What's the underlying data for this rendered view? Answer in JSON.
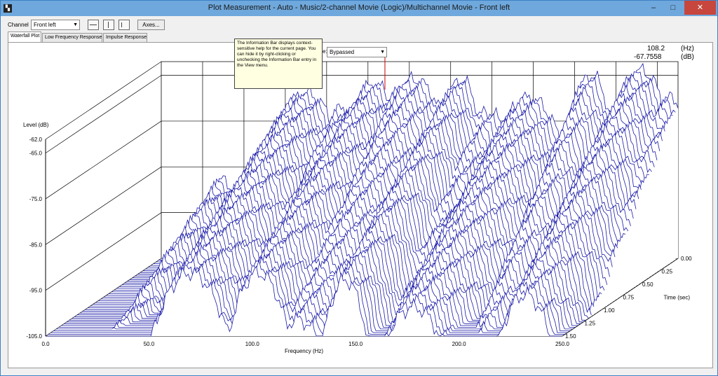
{
  "window": {
    "title": "Plot Measurement - Auto - Music/2-channel Movie (Logic)/Multichannel Movie - Front left",
    "minimize": "–",
    "maximize": "□",
    "close": "✕"
  },
  "toolbar": {
    "channel_label": "Channel",
    "channel_value": "Front left",
    "axes_label": "Axes..."
  },
  "tabs": [
    "Waterfall Plot",
    "Low Frequency Response",
    "Impulse Response"
  ],
  "tooltip": "The Information Bar displays context-sensitive help for the current page. You can hide it by right-clicking or unchecking the Information Bar entry in the View menu.",
  "bypass": {
    "prefix": "e:",
    "value": "Bypassed"
  },
  "readout": {
    "freq_value": "108.2",
    "freq_unit": "(Hz)",
    "level_value": "-67.7558",
    "level_unit": "(dB)"
  },
  "chart_data": {
    "type": "waterfall",
    "xlabel": "Frequency (Hz)",
    "ylabel": "Level (dB)",
    "zlabel": "Time (sec)",
    "x_ticks": [
      "0.0",
      "50.0",
      "100.0",
      "150.0",
      "200.0",
      "250.0"
    ],
    "y_ticks": [
      "-62.0",
      "-65.0",
      "-75.0",
      "-85.0",
      "-95.0",
      "-105.0"
    ],
    "z_ticks": [
      "0.00",
      "0.25",
      "0.50",
      "0.75",
      "1.00",
      "1.25",
      "1.50"
    ],
    "xlim": [
      0,
      250
    ],
    "ylim": [
      -105,
      -62
    ],
    "zlim": [
      0,
      1.5
    ],
    "cursor_frequency": 108.2,
    "line_color": "#1a1aa8",
    "cursor_color": "#cc0000",
    "peaks_hz": [
      [
        30,
        -88
      ],
      [
        50,
        -90
      ],
      [
        70,
        -69
      ],
      [
        88,
        -72
      ],
      [
        103,
        -67
      ],
      [
        122,
        -66
      ],
      [
        145,
        -66
      ],
      [
        158,
        -73
      ],
      [
        178,
        -70
      ],
      [
        208,
        -65
      ],
      [
        232,
        -64
      ],
      [
        245,
        -70
      ]
    ]
  }
}
